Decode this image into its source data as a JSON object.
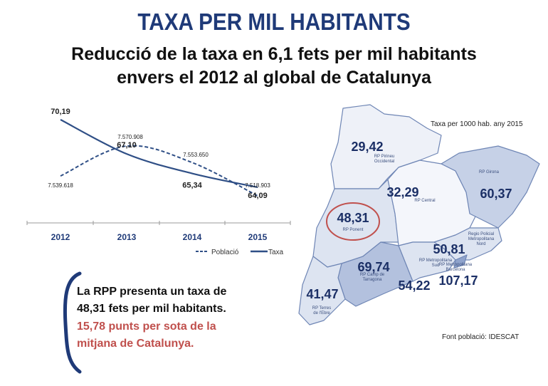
{
  "title": "TAXA PER MIL HABITANTS",
  "subtitle": [
    "Reducció de la taxa en 6,1 fets per mil habitants",
    "envers el 2012 al global de Catalunya"
  ],
  "chart_data": {
    "type": "line",
    "categories": [
      "2012",
      "2013",
      "2014",
      "2015"
    ],
    "series": [
      {
        "name": "Població",
        "style": "dashed",
        "values": [
          7539618,
          7570908,
          7553650,
          7518903
        ],
        "labels": [
          "7.539.618",
          "7.570.908",
          "7.553.650",
          "7.518.903"
        ]
      },
      {
        "name": "Taxa",
        "style": "solid",
        "values": [
          70.19,
          67.1,
          65.34,
          64.09
        ],
        "labels": [
          "70,19",
          "67,10",
          "65,34",
          "64,09"
        ]
      }
    ],
    "color": "#2f4f86",
    "legend": "bottom-right",
    "grid": false
  },
  "note": {
    "lines": [
      "La RPP presenta un taxa de",
      "48,31 fets per mil habitants."
    ],
    "highlight": [
      "15,78 punts per sota de la",
      "mitjana de Catalunya."
    ],
    "highlight_color": "#c0504d"
  },
  "map": {
    "caption": "Taxa per 1000 hab. any 2015",
    "source": "Font població: IDESCAT",
    "regions": [
      {
        "name": "RP Pirineu Occidental",
        "label": [
          "RP Pirineu",
          "Occidental"
        ],
        "value": "29,42"
      },
      {
        "name": "RP Girona",
        "label": [
          "RP Girona"
        ],
        "value": "60,37"
      },
      {
        "name": "RP Central",
        "label": [
          "RP Central"
        ],
        "value": "32,29"
      },
      {
        "name": "RP Ponent",
        "label": [
          "RP Ponent"
        ],
        "value": "48,31",
        "highlighted": true
      },
      {
        "name": "Regió Policial Metropolitana Nord",
        "label": [
          "Regio Policial",
          "Metropolitana",
          "Nord"
        ],
        "value": "50,81"
      },
      {
        "name": "RP Metropolitana Sud",
        "label": [
          "RP Metropolitana",
          "Sud"
        ],
        "value": "54,22"
      },
      {
        "name": "RP Metropolitana Barcelona",
        "label": [
          "RP Metropolitana",
          "Barcelona"
        ],
        "value": "107,17"
      },
      {
        "name": "RP Camp de Tarragona",
        "label": [
          "RP Camp de",
          "Tarragona"
        ],
        "value": "69,74"
      },
      {
        "name": "RP Terres de l'Ebre",
        "label": [
          "RP Terres",
          "de l'Ebre"
        ],
        "value": "41,47"
      }
    ]
  }
}
